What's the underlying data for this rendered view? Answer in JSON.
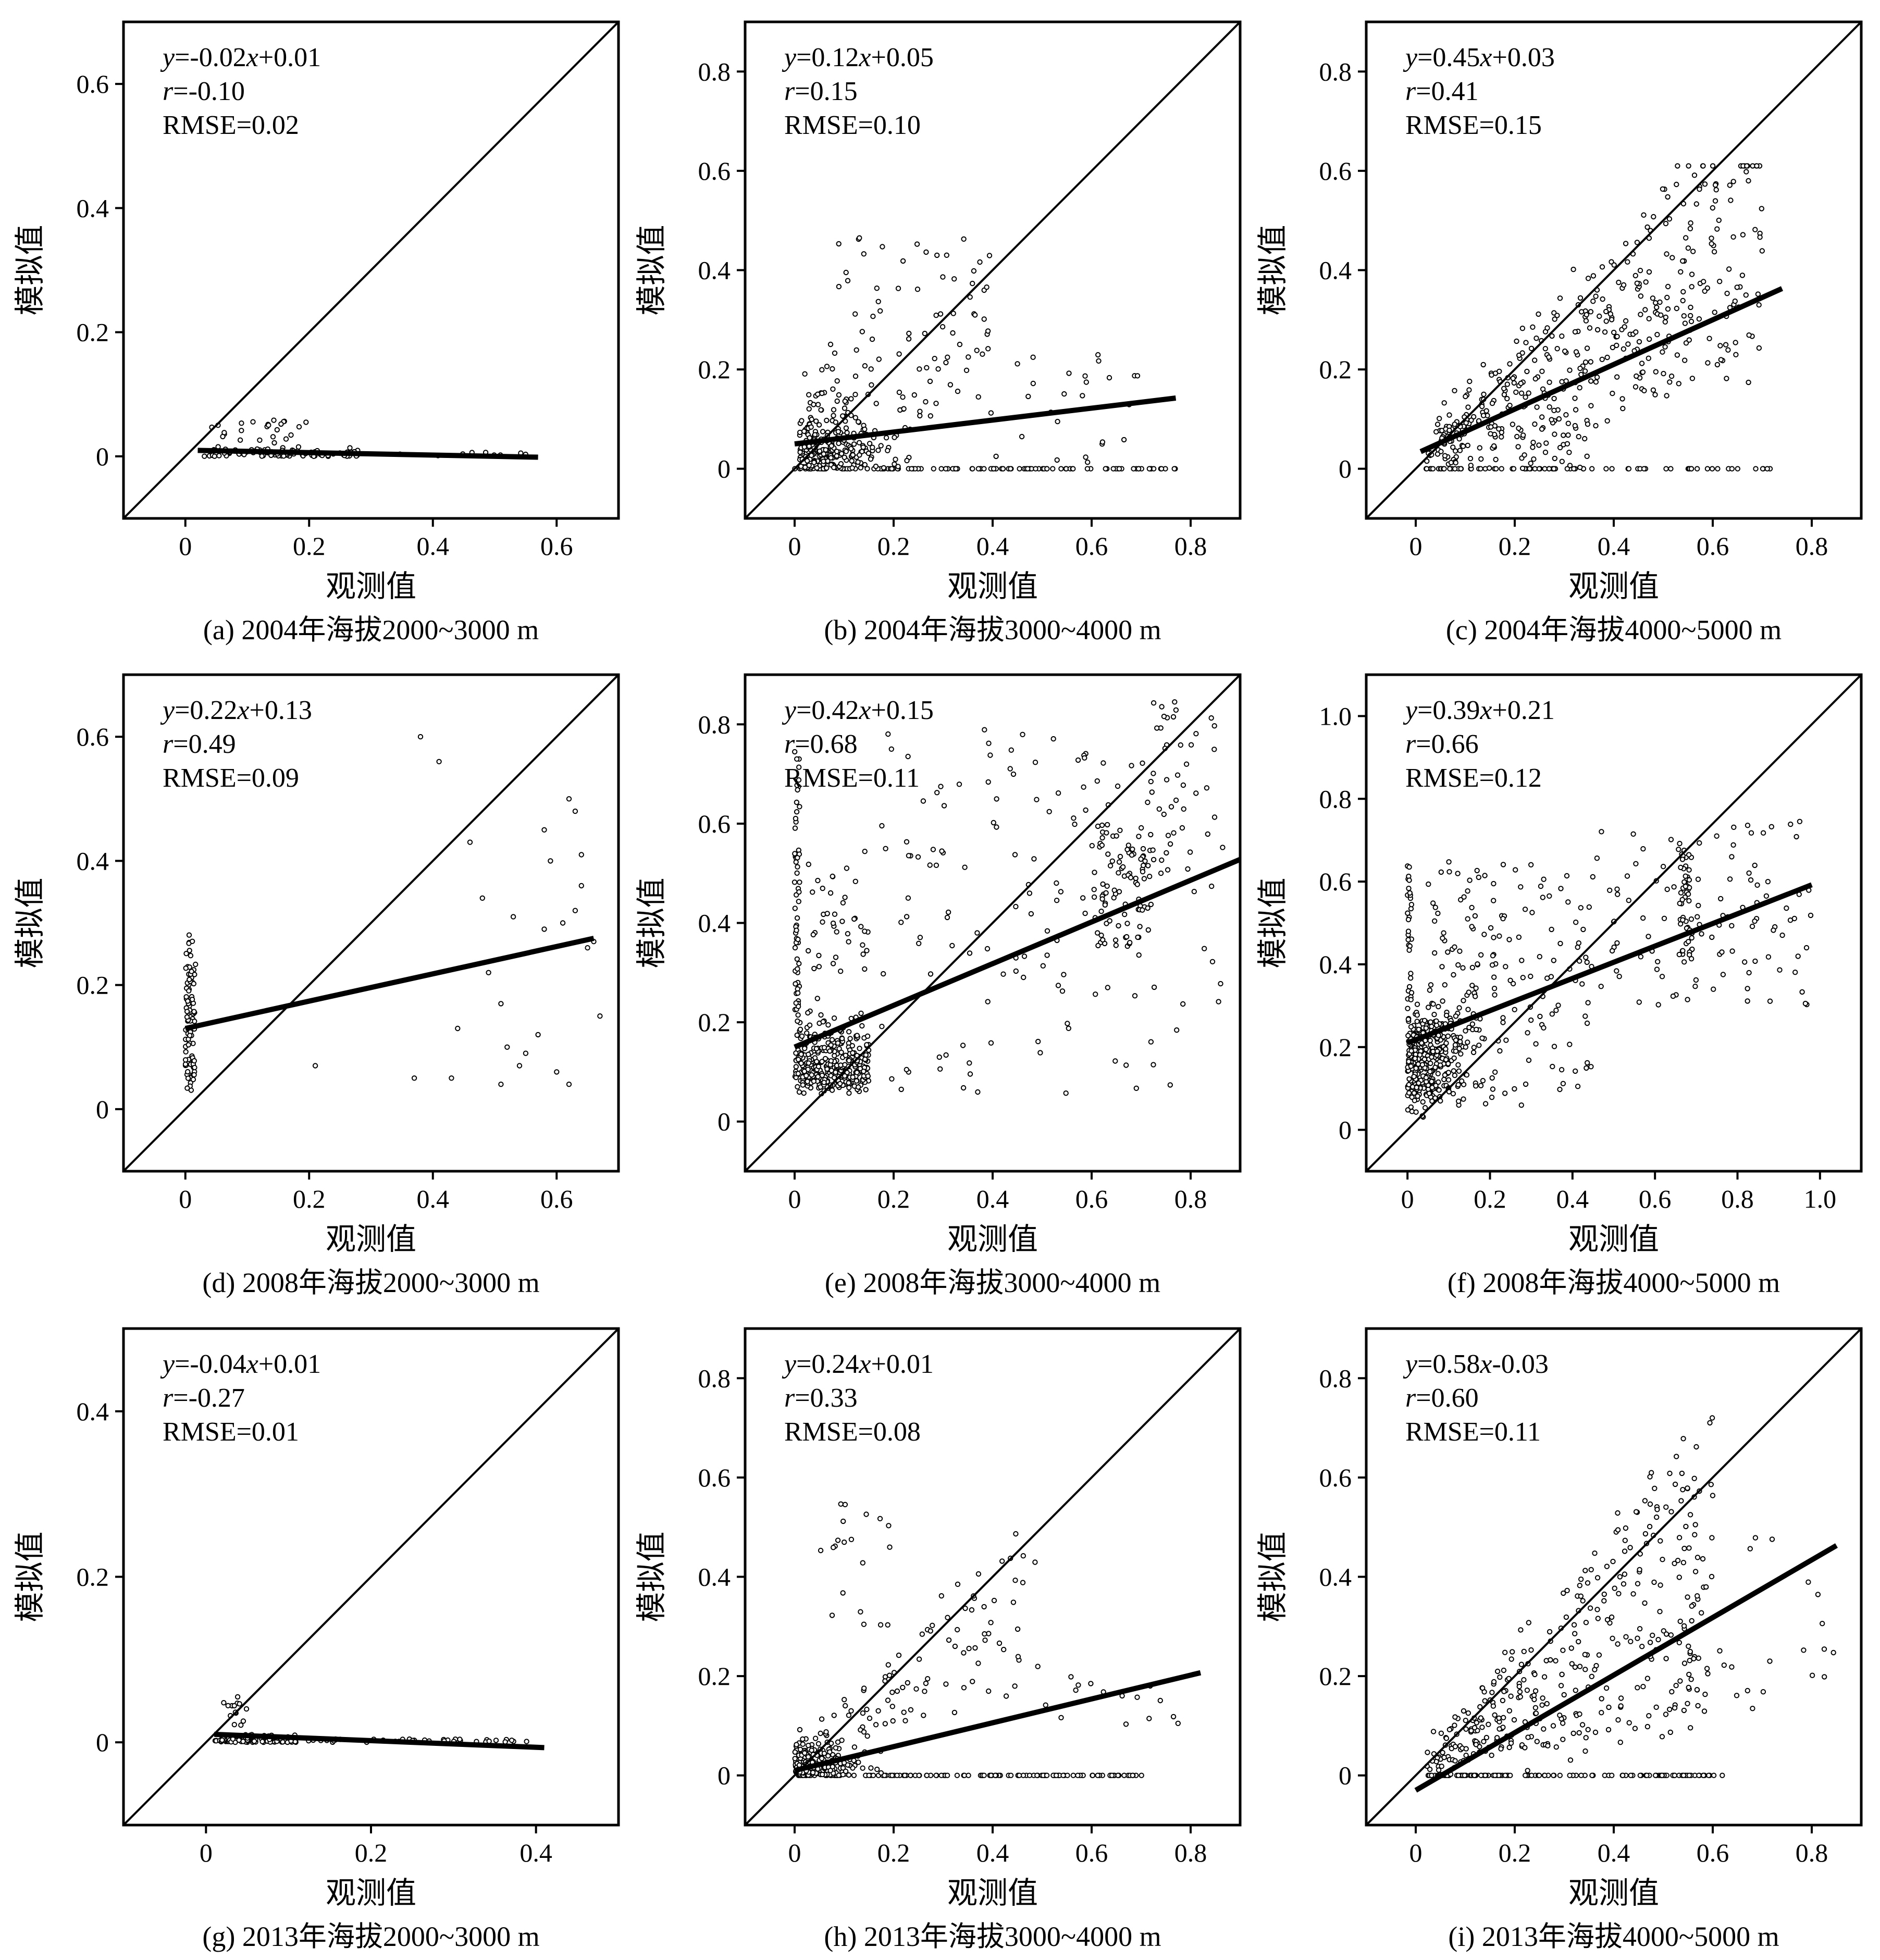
{
  "figure": {
    "panels": [
      {
        "caption": "(a) 2004年海拔2000~3000 m",
        "equation": {
          "y": "y",
          "rest": "=-0.02",
          "x": "x",
          "tail": "+0.01"
        },
        "r_text": {
          "r": "r",
          "rest": "=-0.10"
        },
        "rmse_text": "RMSE=0.02",
        "xlabel": "观测值",
        "ylabel": "模拟值",
        "xlim": [
          -0.1,
          0.7
        ],
        "ylim": [
          -0.1,
          0.7
        ],
        "xticks": [
          0,
          0.2,
          0.4,
          0.6
        ],
        "yticks": [
          0,
          0.2,
          0.4,
          0.6
        ],
        "fit": {
          "slope": -0.02,
          "intercept": 0.01,
          "x_range": [
            0.02,
            0.57
          ]
        },
        "points": {
          "seed": 11,
          "model": "a"
        }
      },
      {
        "caption": "(b) 2004年海拔3000~4000 m",
        "equation": {
          "y": "y",
          "rest": "=0.12",
          "x": "x",
          "tail": "+0.05"
        },
        "r_text": {
          "r": "r",
          "rest": "=0.15"
        },
        "rmse_text": "RMSE=0.10",
        "xlabel": "观测值",
        "ylabel": "模拟值",
        "xlim": [
          -0.1,
          0.9
        ],
        "ylim": [
          -0.1,
          0.9
        ],
        "xticks": [
          0,
          0.2,
          0.4,
          0.6,
          0.8
        ],
        "yticks": [
          0,
          0.2,
          0.4,
          0.6,
          0.8
        ],
        "fit": {
          "slope": 0.12,
          "intercept": 0.05,
          "x_range": [
            0.0,
            0.77
          ]
        },
        "points": {
          "seed": 23,
          "model": "b"
        }
      },
      {
        "caption": "(c) 2004年海拔4000~5000 m",
        "equation": {
          "y": "y",
          "rest": "=0.45",
          "x": "x",
          "tail": "+0.03"
        },
        "r_text": {
          "r": "r",
          "rest": "=0.41"
        },
        "rmse_text": "RMSE=0.15",
        "xlabel": "观测值",
        "ylabel": "模拟值",
        "xlim": [
          -0.1,
          0.9
        ],
        "ylim": [
          -0.1,
          0.9
        ],
        "xticks": [
          0,
          0.2,
          0.4,
          0.6,
          0.8
        ],
        "yticks": [
          0,
          0.2,
          0.4,
          0.6,
          0.8
        ],
        "fit": {
          "slope": 0.45,
          "intercept": 0.03,
          "x_range": [
            0.01,
            0.74
          ]
        },
        "points": {
          "seed": 37,
          "model": "c"
        }
      },
      {
        "caption": "(d) 2008年海拔2000~3000 m",
        "equation": {
          "y": "y",
          "rest": "=0.22",
          "x": "x",
          "tail": "+0.13"
        },
        "r_text": {
          "r": "r",
          "rest": "=0.49"
        },
        "rmse_text": "RMSE=0.09",
        "xlabel": "观测值",
        "ylabel": "模拟值",
        "xlim": [
          -0.1,
          0.7
        ],
        "ylim": [
          -0.1,
          0.7
        ],
        "xticks": [
          0,
          0.2,
          0.4,
          0.6
        ],
        "yticks": [
          0,
          0.2,
          0.4,
          0.6
        ],
        "fit": {
          "slope": 0.22,
          "intercept": 0.13,
          "x_range": [
            0.0,
            0.66
          ]
        },
        "points": {
          "seed": 41,
          "model": "d"
        }
      },
      {
        "caption": "(e) 2008年海拔3000~4000 m",
        "equation": {
          "y": "y",
          "rest": "=0.42",
          "x": "x",
          "tail": "+0.15"
        },
        "r_text": {
          "r": "r",
          "rest": "=0.68"
        },
        "rmse_text": "RMSE=0.11",
        "xlabel": "观测值",
        "ylabel": "模拟值",
        "xlim": [
          -0.1,
          0.9
        ],
        "ylim": [
          -0.1,
          0.9
        ],
        "xticks": [
          0,
          0.2,
          0.4,
          0.6,
          0.8
        ],
        "yticks": [
          0,
          0.2,
          0.4,
          0.6,
          0.8
        ],
        "fit": {
          "slope": 0.42,
          "intercept": 0.15,
          "x_range": [
            0.0,
            0.9
          ]
        },
        "points": {
          "seed": 53,
          "model": "e"
        }
      },
      {
        "caption": "(f) 2008年海拔4000~5000 m",
        "equation": {
          "y": "y",
          "rest": "=0.39",
          "x": "x",
          "tail": "+0.21"
        },
        "r_text": {
          "r": "r",
          "rest": "=0.66"
        },
        "rmse_text": "RMSE=0.12",
        "xlabel": "观测值",
        "ylabel": "模拟值",
        "xlim": [
          -0.1,
          1.1
        ],
        "ylim": [
          -0.1,
          1.1
        ],
        "xticks": [
          0,
          0.2,
          0.4,
          0.6,
          0.8,
          1.0
        ],
        "yticks": [
          0,
          0.2,
          0.4,
          0.6,
          0.8,
          1.0
        ],
        "tick_format_one_decimal": true,
        "fit": {
          "slope": 0.39,
          "intercept": 0.21,
          "x_range": [
            0.0,
            0.98
          ]
        },
        "points": {
          "seed": 67,
          "model": "f"
        }
      },
      {
        "caption": "(g) 2013年海拔2000~3000 m",
        "equation": {
          "y": "y",
          "rest": "=-0.04",
          "x": "x",
          "tail": "+0.01"
        },
        "r_text": {
          "r": "r",
          "rest": "=-0.27"
        },
        "rmse_text": "RMSE=0.01",
        "xlabel": "观测值",
        "ylabel": "模拟值",
        "xlim": [
          -0.1,
          0.5
        ],
        "ylim": [
          -0.1,
          0.5
        ],
        "xticks": [
          0,
          0.2,
          0.4
        ],
        "yticks": [
          0,
          0.2,
          0.4
        ],
        "fit": {
          "slope": -0.04,
          "intercept": 0.01,
          "x_range": [
            0.01,
            0.41
          ]
        },
        "points": {
          "seed": 71,
          "model": "g"
        }
      },
      {
        "caption": "(h) 2013年海拔3000~4000 m",
        "equation": {
          "y": "y",
          "rest": "=0.24",
          "x": "x",
          "tail": "+0.01"
        },
        "r_text": {
          "r": "r",
          "rest": "=0.33"
        },
        "rmse_text": "RMSE=0.08",
        "xlabel": "观测值",
        "ylabel": "模拟值",
        "xlim": [
          -0.1,
          0.9
        ],
        "ylim": [
          -0.1,
          0.9
        ],
        "xticks": [
          0,
          0.2,
          0.4,
          0.6,
          0.8
        ],
        "yticks": [
          0,
          0.2,
          0.4,
          0.6,
          0.8
        ],
        "fit": {
          "slope": 0.24,
          "intercept": 0.01,
          "x_range": [
            0.0,
            0.82
          ]
        },
        "points": {
          "seed": 83,
          "model": "h"
        }
      },
      {
        "caption": "(i) 2013年海拔4000~5000 m",
        "equation": {
          "y": "y",
          "rest": "=0.58",
          "x": "x",
          "tail": "-0.03"
        },
        "r_text": {
          "r": "r",
          "rest": "=0.60"
        },
        "rmse_text": "RMSE=0.11",
        "xlabel": "观测值",
        "ylabel": "模拟值",
        "xlim": [
          -0.1,
          0.9
        ],
        "ylim": [
          -0.1,
          0.9
        ],
        "xticks": [
          0,
          0.2,
          0.4,
          0.6,
          0.8
        ],
        "yticks": [
          0,
          0.2,
          0.4,
          0.6,
          0.8
        ],
        "fit": {
          "slope": 0.58,
          "intercept": -0.03,
          "x_range": [
            0.0,
            0.85
          ]
        },
        "points": {
          "seed": 97,
          "model": "i"
        }
      }
    ]
  },
  "chart_data": [
    {
      "type": "scatter",
      "title": "(a) 2004年海拔2000~3000 m",
      "xlabel": "观测值",
      "ylabel": "模拟值",
      "xlim": [
        -0.1,
        0.7
      ],
      "ylim": [
        -0.1,
        0.7
      ],
      "fit_line": {
        "slope": -0.02,
        "intercept": 0.01
      },
      "identity_line": true,
      "r": -0.1,
      "rmse": 0.02,
      "point_cloud": "mostly observed 0.02–0.3 with simulated near 0–0.06"
    },
    {
      "type": "scatter",
      "title": "(b) 2004年海拔3000~4000 m",
      "xlabel": "观测值",
      "ylabel": "模拟值",
      "xlim": [
        -0.1,
        0.9
      ],
      "ylim": [
        -0.1,
        0.9
      ],
      "fit_line": {
        "slope": 0.12,
        "intercept": 0.05
      },
      "identity_line": true,
      "r": 0.15,
      "rmse": 0.1,
      "point_cloud": "observed 0–0.77, simulated 0–0.48; many points on simulated=0"
    },
    {
      "type": "scatter",
      "title": "(c) 2004年海拔4000~5000 m",
      "xlabel": "观测值",
      "ylabel": "模拟值",
      "xlim": [
        -0.1,
        0.9
      ],
      "ylim": [
        -0.1,
        0.9
      ],
      "fit_line": {
        "slope": 0.45,
        "intercept": 0.03
      },
      "identity_line": true,
      "r": 0.41,
      "rmse": 0.15,
      "point_cloud": "observed 0–0.74, simulated 0–0.61"
    },
    {
      "type": "scatter",
      "title": "(d) 2008年海拔2000~3000 m",
      "xlabel": "观测值",
      "ylabel": "模拟值",
      "xlim": [
        -0.1,
        0.7
      ],
      "ylim": [
        -0.1,
        0.7
      ],
      "fit_line": {
        "slope": 0.22,
        "intercept": 0.13
      },
      "identity_line": true,
      "r": 0.49,
      "rmse": 0.09,
      "point_cloud": "vertical cluster at observed≈0 (simulated 0.03–0.31) plus sparse points 0.2–0.67"
    },
    {
      "type": "scatter",
      "title": "(e) 2008年海拔3000~4000 m",
      "xlabel": "观测值",
      "ylabel": "模拟值",
      "xlim": [
        -0.1,
        0.9
      ],
      "ylim": [
        -0.1,
        0.9
      ],
      "fit_line": {
        "slope": 0.42,
        "intercept": 0.15
      },
      "identity_line": true,
      "r": 0.68,
      "rmse": 0.11,
      "point_cloud": "dense cluster observed 0–0.15, second cluster near observed 0.65–0.85"
    },
    {
      "type": "scatter",
      "title": "(f) 2008年海拔4000~5000 m",
      "xlabel": "观测值",
      "ylabel": "模拟值",
      "xlim": [
        -0.1,
        1.1
      ],
      "ylim": [
        -0.1,
        1.1
      ],
      "fit_line": {
        "slope": 0.39,
        "intercept": 0.21
      },
      "identity_line": true,
      "r": 0.66,
      "rmse": 0.12,
      "point_cloud": "dense cluster observed 0–0.4, cluster near observed 0.67, spread to 0.98"
    },
    {
      "type": "scatter",
      "title": "(g) 2013年海拔2000~3000 m",
      "xlabel": "观测值",
      "ylabel": "模拟值",
      "xlim": [
        -0.1,
        0.5
      ],
      "ylim": [
        -0.1,
        0.5
      ],
      "fit_line": {
        "slope": -0.04,
        "intercept": 0.01
      },
      "identity_line": true,
      "r": -0.27,
      "rmse": 0.01,
      "point_cloud": "observed 0.01–0.41, simulated near 0–0.06"
    },
    {
      "type": "scatter",
      "title": "(h) 2013年海拔3000~4000 m",
      "xlabel": "观测值",
      "ylabel": "模拟值",
      "xlim": [
        -0.1,
        0.9
      ],
      "ylim": [
        -0.1,
        0.9
      ],
      "fit_line": {
        "slope": 0.24,
        "intercept": 0.01
      },
      "identity_line": true,
      "r": 0.33,
      "rmse": 0.08,
      "point_cloud": "observed 0–0.8, simulated 0–0.55; many points on simulated=0"
    },
    {
      "type": "scatter",
      "title": "(i) 2013年海拔4000~5000 m",
      "xlabel": "观测值",
      "ylabel": "模拟值",
      "xlim": [
        -0.1,
        0.9
      ],
      "ylim": [
        -0.1,
        0.9
      ],
      "fit_line": {
        "slope": 0.58,
        "intercept": -0.03
      },
      "identity_line": true,
      "r": 0.6,
      "rmse": 0.11,
      "point_cloud": "observed 0–0.85, simulated 0–0.72"
    }
  ]
}
